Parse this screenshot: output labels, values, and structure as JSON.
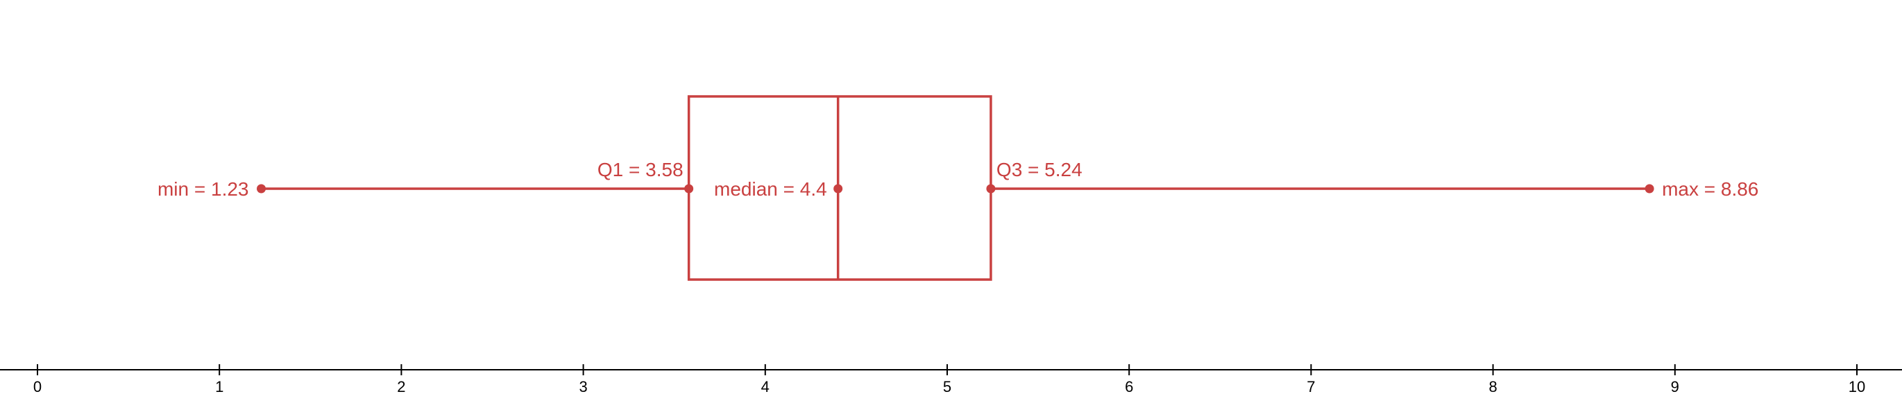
{
  "chart_data": {
    "type": "boxplot",
    "min": 1.23,
    "q1": 3.58,
    "median": 4.4,
    "q3": 5.24,
    "max": 8.86,
    "xlim": [
      0,
      10
    ],
    "ticks": [
      0,
      1,
      2,
      3,
      4,
      5,
      6,
      7,
      8,
      9,
      10
    ],
    "labels": {
      "min": "min = 1.23",
      "q1": "Q1 = 3.58",
      "median": "median = 4.4",
      "q3": "Q3 = 5.24",
      "max": "max = 8.86"
    },
    "colors": {
      "box": "#c94040",
      "axis": "#000000"
    }
  }
}
